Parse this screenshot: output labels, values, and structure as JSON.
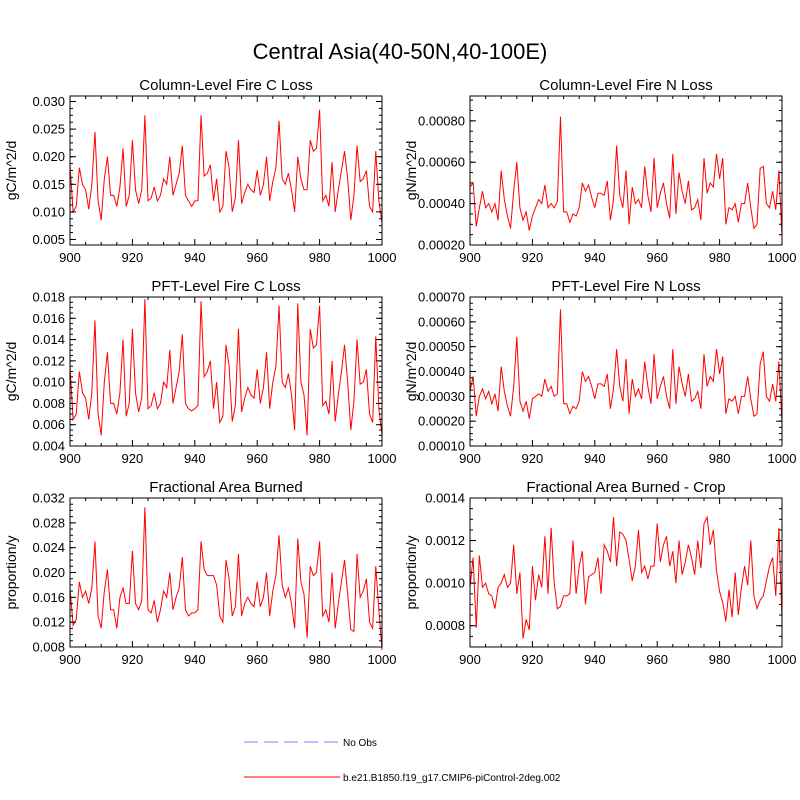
{
  "figure": {
    "title": "Central Asia(40-50N,40-100E)",
    "legend": [
      {
        "label": "No Obs",
        "color": "#9999ff",
        "style": "dashed"
      },
      {
        "label": "b.e21.B1850.f19_g17.CMIP6-piControl-2deg.002",
        "color": "#ff0000",
        "style": "solid"
      }
    ]
  },
  "chart_data": [
    {
      "type": "line",
      "title": "Column-Level Fire C Loss",
      "ylabel": "gC/m^2/d",
      "xlim": [
        900,
        1000
      ],
      "ylim": [
        0.004,
        0.031
      ],
      "xticks": [
        900,
        920,
        940,
        960,
        980,
        1000
      ],
      "xtick_labels": [
        "900",
        "920",
        "940",
        "960",
        "980",
        "1000"
      ],
      "yticks": [
        0.005,
        0.01,
        0.015,
        0.02,
        0.025,
        0.03
      ],
      "ytick_labels": [
        "0.005",
        "0.010",
        "0.015",
        "0.020",
        "0.025",
        "0.030"
      ],
      "x_start": 900,
      "series": [
        {
          "name": "b.e21.B1850.f19_g17.CMIP6-piControl-2deg.002",
          "color": "#ff0000",
          "values": [
            0.0185,
            0.01,
            0.011,
            0.018,
            0.015,
            0.014,
            0.0105,
            0.015,
            0.0245,
            0.012,
            0.0085,
            0.016,
            0.02,
            0.013,
            0.013,
            0.011,
            0.0145,
            0.0215,
            0.011,
            0.013,
            0.023,
            0.014,
            0.0115,
            0.014,
            0.0275,
            0.012,
            0.0125,
            0.0145,
            0.012,
            0.013,
            0.016,
            0.015,
            0.02,
            0.013,
            0.015,
            0.017,
            0.022,
            0.013,
            0.012,
            0.011,
            0.012,
            0.012,
            0.0275,
            0.0165,
            0.017,
            0.0185,
            0.012,
            0.016,
            0.01,
            0.011,
            0.021,
            0.018,
            0.01,
            0.0125,
            0.023,
            0.0115,
            0.0135,
            0.015,
            0.014,
            0.0135,
            0.0175,
            0.013,
            0.015,
            0.02,
            0.012,
            0.0155,
            0.018,
            0.0265,
            0.016,
            0.015,
            0.017,
            0.014,
            0.01,
            0.02,
            0.016,
            0.014,
            0.014,
            0.023,
            0.021,
            0.0215,
            0.0285,
            0.012,
            0.013,
            0.011,
            0.019,
            0.01,
            0.014,
            0.0175,
            0.021,
            0.016,
            0.0085,
            0.013,
            0.022,
            0.0155,
            0.016,
            0.0175,
            0.011,
            0.01,
            0.021,
            0.012,
            0.008
          ]
        }
      ]
    },
    {
      "type": "line",
      "title": "Column-Level Fire N Loss",
      "ylabel": "gN/m^2/d",
      "xlim": [
        900,
        1000
      ],
      "ylim": [
        0.0002,
        0.00092
      ],
      "xticks": [
        900,
        920,
        940,
        960,
        980,
        1000
      ],
      "xtick_labels": [
        "900",
        "920",
        "940",
        "960",
        "980",
        "1000"
      ],
      "yticks": [
        0.0002,
        0.0004,
        0.0006,
        0.0008
      ],
      "ytick_labels": [
        "0.00020",
        "0.00040",
        "0.00060",
        "0.00080"
      ],
      "x_start": 900,
      "series": [
        {
          "name": "b.e21.B1850.f19_g17.CMIP6-piControl-2deg.002",
          "color": "#ff0000",
          "values": [
            0.00048,
            0.0005,
            0.00029,
            0.00038,
            0.00046,
            0.00038,
            0.0004,
            0.00036,
            0.0004,
            0.00032,
            0.00056,
            0.00042,
            0.00034,
            0.00028,
            0.00046,
            0.0006,
            0.00038,
            0.00032,
            0.00036,
            0.00027,
            0.00034,
            0.00038,
            0.00042,
            0.0004,
            0.00049,
            0.00038,
            0.0004,
            0.00038,
            0.00041,
            0.00082,
            0.00036,
            0.00036,
            0.00031,
            0.00035,
            0.00034,
            0.00038,
            0.0005,
            0.00046,
            0.00049,
            0.00043,
            0.00038,
            0.00045,
            0.00045,
            0.00044,
            0.00051,
            0.00032,
            0.00042,
            0.00068,
            0.00044,
            0.00038,
            0.00056,
            0.0003,
            0.00048,
            0.0004,
            0.00042,
            0.00038,
            0.00058,
            0.00044,
            0.00036,
            0.00062,
            0.00038,
            0.00045,
            0.0005,
            0.0004,
            0.00033,
            0.00064,
            0.00035,
            0.00055,
            0.00046,
            0.0004,
            0.00051,
            0.00037,
            0.00038,
            0.00042,
            0.00032,
            0.00062,
            0.00045,
            0.0005,
            0.00048,
            0.00064,
            0.00052,
            0.00062,
            0.0003,
            0.00038,
            0.00037,
            0.0004,
            0.00031,
            0.0004,
            0.0004,
            0.0005,
            0.00038,
            0.00028,
            0.0003,
            0.00057,
            0.00058,
            0.0004,
            0.00038,
            0.00046,
            0.00037,
            0.00056,
            0.00024
          ]
        }
      ]
    },
    {
      "type": "line",
      "title": "PFT-Level Fire C Loss",
      "ylabel": "gC/m^2/d",
      "xlim": [
        900,
        1000
      ],
      "ylim": [
        0.004,
        0.018
      ],
      "xticks": [
        900,
        920,
        940,
        960,
        980,
        1000
      ],
      "xtick_labels": [
        "900",
        "920",
        "940",
        "960",
        "980",
        "1000"
      ],
      "yticks": [
        0.004,
        0.006,
        0.008,
        0.01,
        0.012,
        0.014,
        0.016,
        0.018
      ],
      "ytick_labels": [
        "0.004",
        "0.006",
        "0.008",
        "0.010",
        "0.012",
        "0.014",
        "0.016",
        "0.018"
      ],
      "x_start": 900,
      "series": [
        {
          "name": "b.e21.B1850.f19_g17.CMIP6-piControl-2deg.002",
          "color": "#ff0000",
          "values": [
            0.0115,
            0.0065,
            0.007,
            0.011,
            0.009,
            0.0085,
            0.0065,
            0.009,
            0.0158,
            0.007,
            0.005,
            0.01,
            0.0128,
            0.008,
            0.008,
            0.007,
            0.009,
            0.014,
            0.0068,
            0.008,
            0.015,
            0.009,
            0.0072,
            0.0085,
            0.0178,
            0.0075,
            0.0078,
            0.009,
            0.0075,
            0.008,
            0.01,
            0.0095,
            0.013,
            0.008,
            0.0095,
            0.011,
            0.0145,
            0.008,
            0.0075,
            0.0073,
            0.0075,
            0.0078,
            0.0176,
            0.0105,
            0.011,
            0.012,
            0.0075,
            0.01,
            0.0062,
            0.0068,
            0.0135,
            0.0115,
            0.0063,
            0.0078,
            0.015,
            0.0072,
            0.0085,
            0.0095,
            0.0088,
            0.0085,
            0.0112,
            0.008,
            0.0095,
            0.0128,
            0.0075,
            0.01,
            0.0115,
            0.0172,
            0.01,
            0.0095,
            0.0108,
            0.0088,
            0.0055,
            0.0174,
            0.01,
            0.0088,
            0.005,
            0.015,
            0.0132,
            0.0135,
            0.0172,
            0.0078,
            0.0082,
            0.007,
            0.012,
            0.0063,
            0.0088,
            0.011,
            0.0135,
            0.01,
            0.0055,
            0.0082,
            0.014,
            0.0098,
            0.01,
            0.0112,
            0.007,
            0.0062,
            0.0143,
            0.0075,
            0.005
          ]
        }
      ]
    },
    {
      "type": "line",
      "title": "PFT-Level Fire N Loss",
      "ylabel": "gN/m^2/d",
      "xlim": [
        900,
        1000
      ],
      "ylim": [
        0.0001,
        0.0007
      ],
      "xticks": [
        900,
        920,
        940,
        960,
        980,
        1000
      ],
      "xtick_labels": [
        "900",
        "920",
        "940",
        "960",
        "980",
        "1000"
      ],
      "yticks": [
        0.0001,
        0.0002,
        0.0003,
        0.0004,
        0.0005,
        0.0006,
        0.0007
      ],
      "ytick_labels": [
        "0.00010",
        "0.00020",
        "0.00030",
        "0.00040",
        "0.00050",
        "0.00060",
        "0.00070"
      ],
      "x_start": 900,
      "series": [
        {
          "name": "b.e21.B1850.f19_g17.CMIP6-piControl-2deg.002",
          "color": "#ff0000",
          "values": [
            0.00032,
            0.00038,
            0.00022,
            0.0003,
            0.00033,
            0.00029,
            0.00032,
            0.00027,
            0.00031,
            0.00024,
            0.00042,
            0.00032,
            0.00026,
            0.00022,
            0.00034,
            0.00054,
            0.00028,
            0.00024,
            0.00028,
            0.00021,
            0.00029,
            0.0003,
            0.00031,
            0.0003,
            0.00037,
            0.00032,
            0.00034,
            0.0003,
            0.00031,
            0.00065,
            0.00027,
            0.00027,
            0.00023,
            0.00026,
            0.00025,
            0.00028,
            0.0004,
            0.00036,
            0.00038,
            0.00034,
            0.00029,
            0.00035,
            0.00035,
            0.00034,
            0.00039,
            0.00025,
            0.00033,
            0.00049,
            0.00034,
            0.00028,
            0.00045,
            0.00023,
            0.00037,
            0.0003,
            0.00033,
            0.00029,
            0.00044,
            0.00034,
            0.00027,
            0.00047,
            0.00029,
            0.00034,
            0.00038,
            0.0003,
            0.00025,
            0.00049,
            0.00027,
            0.00042,
            0.00035,
            0.0003,
            0.00039,
            0.00028,
            0.00029,
            0.00032,
            0.00025,
            0.00047,
            0.00034,
            0.00038,
            0.00036,
            0.00049,
            0.00039,
            0.00046,
            0.00023,
            0.00029,
            0.00028,
            0.0003,
            0.00023,
            0.0003,
            0.0003,
            0.00038,
            0.00029,
            0.00022,
            0.00023,
            0.00043,
            0.00048,
            0.0003,
            0.00028,
            0.00035,
            0.00028,
            0.00044,
            0.00019
          ]
        }
      ]
    },
    {
      "type": "line",
      "title": "Fractional Area Burned",
      "ylabel": "proportion/y",
      "xlim": [
        900,
        1000
      ],
      "ylim": [
        0.008,
        0.032
      ],
      "xticks": [
        900,
        920,
        940,
        960,
        980,
        1000
      ],
      "xtick_labels": [
        "900",
        "920",
        "940",
        "960",
        "980",
        "1000"
      ],
      "yticks": [
        0.008,
        0.012,
        0.016,
        0.02,
        0.024,
        0.028,
        0.032
      ],
      "ytick_labels": [
        "0.008",
        "0.012",
        "0.016",
        "0.020",
        "0.024",
        "0.028",
        "0.032"
      ],
      "x_start": 900,
      "series": [
        {
          "name": "b.e21.B1850.f19_g17.CMIP6-piControl-2deg.002",
          "color": "#ff0000",
          "values": [
            0.0175,
            0.0115,
            0.0125,
            0.0185,
            0.016,
            0.017,
            0.015,
            0.0175,
            0.025,
            0.013,
            0.011,
            0.017,
            0.0205,
            0.014,
            0.014,
            0.011,
            0.016,
            0.0175,
            0.015,
            0.015,
            0.0235,
            0.015,
            0.014,
            0.0155,
            0.0305,
            0.014,
            0.0135,
            0.0155,
            0.012,
            0.014,
            0.017,
            0.016,
            0.02,
            0.014,
            0.016,
            0.0175,
            0.0225,
            0.014,
            0.013,
            0.0135,
            0.0135,
            0.014,
            0.025,
            0.0205,
            0.0195,
            0.0195,
            0.0195,
            0.018,
            0.013,
            0.012,
            0.022,
            0.019,
            0.013,
            0.0145,
            0.023,
            0.013,
            0.015,
            0.016,
            0.015,
            0.0145,
            0.0185,
            0.0145,
            0.016,
            0.02,
            0.013,
            0.017,
            0.0195,
            0.026,
            0.018,
            0.016,
            0.0175,
            0.015,
            0.011,
            0.0255,
            0.0185,
            0.0165,
            0.0095,
            0.021,
            0.0195,
            0.02,
            0.025,
            0.013,
            0.014,
            0.012,
            0.02,
            0.011,
            0.015,
            0.0185,
            0.022,
            0.0165,
            0.0108,
            0.0105,
            0.023,
            0.016,
            0.017,
            0.019,
            0.012,
            0.011,
            0.021,
            0.014,
            0.0075
          ]
        }
      ]
    },
    {
      "type": "line",
      "title": "Fractional Area Burned - Crop",
      "ylabel": "proportion/y",
      "xlim": [
        900,
        1000
      ],
      "ylim": [
        0.0007,
        0.0014
      ],
      "xticks": [
        900,
        920,
        940,
        960,
        980,
        1000
      ],
      "xtick_labels": [
        "900",
        "920",
        "940",
        "960",
        "980",
        "1000"
      ],
      "yticks": [
        0.0008,
        0.001,
        0.0012,
        0.0014
      ],
      "ytick_labels": [
        "0.0008",
        "0.0010",
        "0.0012",
        "0.0014"
      ],
      "x_start": 900,
      "series": [
        {
          "name": "b.e21.B1850.f19_g17.CMIP6-piControl-2deg.002",
          "color": "#ff0000",
          "values": [
            0.00098,
            0.00112,
            0.00079,
            0.00113,
            0.00098,
            0.001,
            0.00095,
            0.00094,
            0.00088,
            0.00098,
            0.001,
            0.00104,
            0.00098,
            0.001,
            0.00118,
            0.00095,
            0.00105,
            0.00074,
            0.00083,
            0.00078,
            0.00108,
            0.00092,
            0.00104,
            0.00098,
            0.00122,
            0.00095,
            0.00126,
            0.001,
            0.00088,
            0.00089,
            0.00094,
            0.00094,
            0.00095,
            0.0012,
            0.00095,
            0.00108,
            0.00115,
            0.0009,
            0.00103,
            0.00104,
            0.00105,
            0.00112,
            0.00095,
            0.00118,
            0.00115,
            0.0011,
            0.00131,
            0.00108,
            0.00124,
            0.00123,
            0.0012,
            0.00111,
            0.00101,
            0.00108,
            0.00125,
            0.00105,
            0.00108,
            0.00102,
            0.00108,
            0.00108,
            0.00128,
            0.0011,
            0.00118,
            0.00122,
            0.00108,
            0.00115,
            0.001,
            0.0012,
            0.00104,
            0.0011,
            0.00118,
            0.00112,
            0.00104,
            0.0012,
            0.00107,
            0.00128,
            0.00131,
            0.00118,
            0.00125,
            0.00106,
            0.00096,
            0.00091,
            0.00082,
            0.00097,
            0.00084,
            0.00105,
            0.00085,
            0.00098,
            0.00108,
            0.00099,
            0.0012,
            0.00094,
            0.00088,
            0.00092,
            0.00094,
            0.00101,
            0.00108,
            0.00112,
            0.00094,
            0.00126,
            0.00083
          ]
        }
      ]
    }
  ]
}
